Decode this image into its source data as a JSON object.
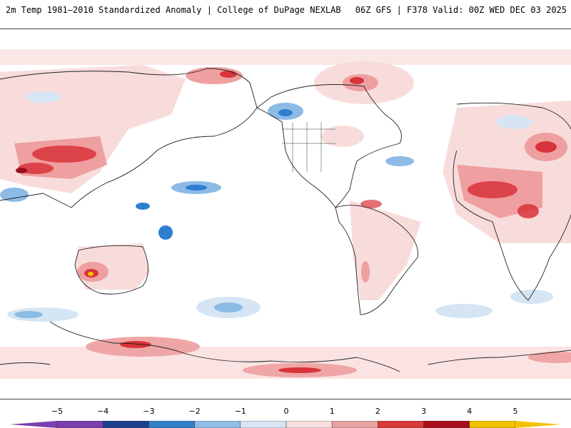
{
  "header": {
    "left_title": "2m Temp 1981–2010 Standardized Anomaly | College of DuPage NEXLAB",
    "right_title": "06Z GFS | F378 Valid: 00Z WED DEC 03 2025"
  },
  "legend": {
    "ticks": [
      "−5",
      "−4",
      "−3",
      "−2",
      "−1",
      "0",
      "1",
      "2",
      "3",
      "4",
      "5"
    ],
    "colors": [
      "#7b3fb0",
      "#1f3f8f",
      "#2f7fc9",
      "#8fbde6",
      "#d7e6f4",
      "#ffffff",
      "#f6dede",
      "#e8a3a3",
      "#d83a3a",
      "#a80f1a",
      "#f2c200"
    ]
  },
  "map": {
    "description_colors": {
      "warm_light": "#f8dcdc",
      "warm_mid": "#ef9f9f",
      "warm_strong": "#d8323a",
      "warm_extreme": "#9c0f1e",
      "cool_light": "#d6e5f4",
      "cool_mid": "#8cbbe6",
      "cool_strong": "#2d7ed0",
      "cool_extreme": "#1e3c8c",
      "yellow_extreme": "#f5c400"
    }
  }
}
